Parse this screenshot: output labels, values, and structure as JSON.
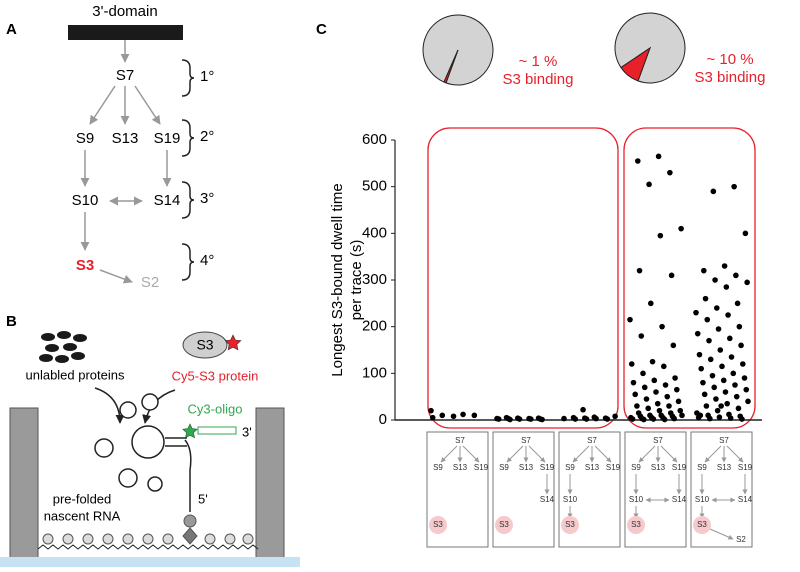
{
  "panel_labels": [
    "A",
    "B",
    "C"
  ],
  "panel_a": {
    "domain": "3'-domain",
    "nodes": [
      "S7",
      "S9",
      "S13",
      "S19",
      "S10",
      "S14",
      "S3",
      "S2"
    ],
    "levels": [
      "1°",
      "2°",
      "3°",
      "4°"
    ]
  },
  "panel_b": {
    "proteins": "unlabled proteins",
    "s3": "S3",
    "cy5": "Cy5-S3 protein",
    "cy3": "Cy3-oligo",
    "end3": "3'",
    "end5": "5'",
    "rna": [
      "pre-folded",
      "nascent RNA"
    ]
  },
  "chart_data": [
    {
      "type": "pie",
      "values": [
        1,
        99
      ],
      "value_labels": [
        "~ 1 %",
        null
      ],
      "colors": [
        "#e8202a",
        "#d3d3d3"
      ],
      "annotation": "S3 binding"
    },
    {
      "type": "pie",
      "values": [
        10,
        90
      ],
      "value_labels": [
        "~ 10 %",
        null
      ],
      "colors": [
        "#e8202a",
        "#d3d3d3"
      ],
      "annotation": "S3 binding"
    },
    {
      "type": "strip",
      "ylabel": [
        "Longest S3-bound dwell time",
        "per trace (s)"
      ],
      "ylim": [
        0,
        600
      ],
      "yticks": [
        0,
        100,
        200,
        300,
        400,
        500,
        600
      ],
      "series": [
        {
          "color": "#000000",
          "values": [
            20,
            12,
            10,
            10,
            8,
            5
          ]
        },
        {
          "color": "#000000",
          "values": [
            5,
            4,
            4,
            3,
            3,
            3,
            2,
            2,
            2,
            2,
            1,
            1
          ]
        },
        {
          "color": "#000000",
          "values": [
            22,
            8,
            6,
            5,
            4,
            4,
            3,
            3,
            2,
            2,
            2
          ]
        },
        {
          "color": "#000000",
          "values": [
            565,
            555,
            530,
            505,
            410,
            395,
            320,
            310,
            250,
            215,
            200,
            180,
            160,
            125,
            120,
            115,
            100,
            90,
            85,
            80,
            75,
            70,
            65,
            60,
            55,
            50,
            45,
            40,
            35,
            30,
            30,
            25,
            20,
            20,
            15,
            15,
            10,
            10,
            10,
            8,
            8,
            5,
            5,
            5,
            3,
            3,
            2,
            2,
            1,
            1
          ]
        },
        {
          "color": "#000000",
          "values": [
            500,
            490,
            400,
            330,
            320,
            310,
            300,
            295,
            285,
            260,
            250,
            240,
            230,
            225,
            215,
            200,
            195,
            185,
            175,
            170,
            160,
            150,
            140,
            135,
            130,
            120,
            115,
            110,
            100,
            95,
            90,
            85,
            80,
            75,
            70,
            65,
            60,
            55,
            50,
            45,
            40,
            35,
            30,
            25,
            20,
            15,
            12,
            10,
            8,
            6,
            5,
            4,
            3,
            2,
            30,
            10
          ]
        }
      ]
    }
  ],
  "mini_diagrams": [
    {
      "nodes": [
        "S7",
        "S9",
        "S13",
        "S19",
        "S3"
      ]
    },
    {
      "nodes": [
        "S7",
        "S9",
        "S13",
        "S19",
        "S14",
        "S3"
      ]
    },
    {
      "nodes": [
        "S7",
        "S9",
        "S13",
        "S19",
        "S10",
        "S3"
      ]
    },
    {
      "nodes": [
        "S7",
        "S9",
        "S13",
        "S19",
        "S10",
        "S14",
        "S3"
      ]
    },
    {
      "nodes": [
        "S7",
        "S9",
        "S13",
        "S19",
        "S10",
        "S14",
        "S3",
        "S2"
      ]
    }
  ]
}
